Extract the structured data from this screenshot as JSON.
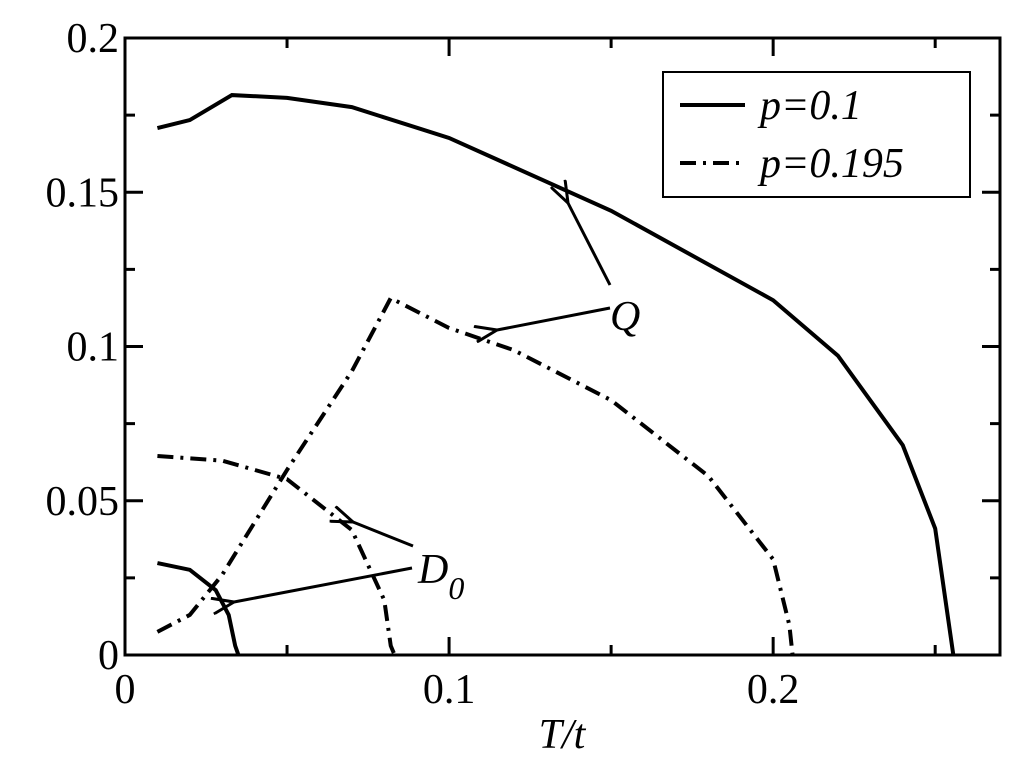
{
  "chart_data": {
    "type": "line",
    "xlabel": "T/t",
    "xlim": [
      0,
      0.27
    ],
    "ylim": [
      0,
      0.2
    ],
    "xticks": [
      0,
      0.1,
      0.2
    ],
    "xminorticks": [
      0.05,
      0.15,
      0.25
    ],
    "yticks": [
      0,
      0.05,
      0.1,
      0.15,
      0.2
    ],
    "yminorticks": [
      0.025,
      0.075,
      0.125,
      0.175
    ],
    "color": "#000000",
    "legend": "upper right",
    "series": [
      {
        "name": "p=0.1",
        "dash": "solid",
        "curves": [
          {
            "x": [
              0.01,
              0.02,
              0.033,
              0.05,
              0.07,
              0.1,
              0.15,
              0.2,
              0.22,
              0.24,
              0.25,
              0.2556
            ],
            "values": [
              0.1708,
              0.1734,
              0.1815,
              0.1806,
              0.1776,
              0.1676,
              0.144,
              0.115,
              0.097,
              0.068,
              0.041,
              0
            ]
          },
          {
            "x": [
              0.01,
              0.02,
              0.028,
              0.032,
              0.034,
              0.035
            ],
            "values": [
              0.0298,
              0.0276,
              0.021,
              0.013,
              0.003,
              0
            ]
          }
        ]
      },
      {
        "name": "p=0.195",
        "dash": "dashdot",
        "curves": [
          {
            "x": [
              0.01,
              0.02,
              0.03,
              0.05,
              0.07,
              0.082,
              0.1,
              0.12,
              0.15,
              0.18,
              0.2,
              0.205,
              0.206
            ],
            "values": [
              0.0075,
              0.013,
              0.026,
              0.06,
              0.092,
              0.1157,
              0.106,
              0.0988,
              0.0826,
              0.058,
              0.031,
              0.0097,
              0
            ]
          },
          {
            "x": [
              0.01,
              0.03,
              0.05,
              0.07,
              0.08,
              0.082,
              0.0832
            ],
            "values": [
              0.0645,
              0.063,
              0.057,
              0.0405,
              0.0178,
              0.003,
              0
            ]
          }
        ]
      }
    ],
    "annotations": [
      {
        "text": "Q"
      },
      {
        "text": "D",
        "subscript": "0"
      }
    ]
  }
}
